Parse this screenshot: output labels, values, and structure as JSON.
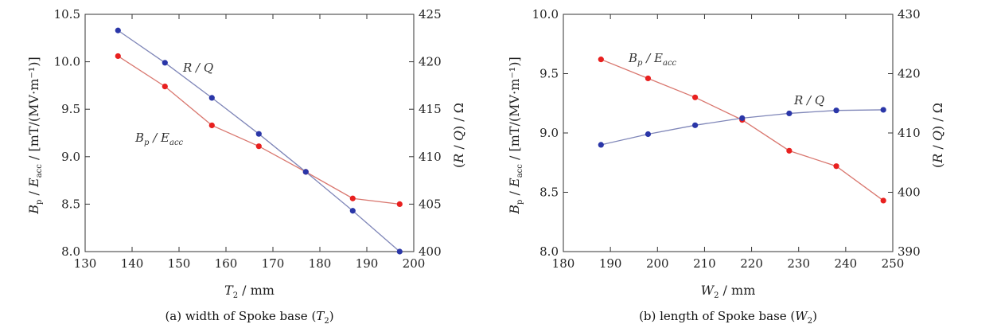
{
  "chart_data": [
    {
      "type": "line",
      "caption": "(a) width of Spoke base (T2)",
      "xlabel": "T2 / mm",
      "ylabel_left": "Bp / Eacc / [mT/(MV·m⁻¹)]",
      "ylabel_right": "(R / Q) / Ω",
      "xlim": [
        130,
        200
      ],
      "ylim_left": [
        8.0,
        10.5
      ],
      "ylim_right": [
        400,
        425
      ],
      "x_ticks": [
        "130",
        "140",
        "150",
        "160",
        "170",
        "180",
        "190",
        "200"
      ],
      "y_ticks_left": [
        "8.0",
        "8.5",
        "9.0",
        "9.5",
        "10.0",
        "10.5"
      ],
      "y_ticks_right": [
        "400",
        "405",
        "410",
        "415",
        "420",
        "425"
      ],
      "series": [
        {
          "name": "Bp / Eacc",
          "axis": "left",
          "color": "#e8201f",
          "line_color": "#d9776f",
          "x": [
            137,
            147,
            157,
            167,
            177,
            187,
            197
          ],
          "values": [
            10.06,
            9.74,
            9.33,
            9.11,
            8.84,
            8.56,
            8.5
          ]
        },
        {
          "name": "R / Q",
          "axis": "right",
          "color": "#2a36a8",
          "line_color": "#7f86b8",
          "x": [
            137,
            147,
            157,
            167,
            177,
            187,
            197
          ],
          "values": [
            423.3,
            419.9,
            416.2,
            412.4,
            408.4,
            404.3,
            400.0
          ]
        }
      ],
      "annotations": [
        {
          "text": "R / Q",
          "series": "R / Q"
        },
        {
          "text": "Bp / Eacc",
          "series": "Bp / Eacc"
        }
      ]
    },
    {
      "type": "line",
      "caption": "(b) length of Spoke base (W2)",
      "xlabel": "W2 / mm",
      "ylabel_left": "Bp / Eacc / [mT/(MV·m⁻¹)]",
      "ylabel_right": "(R / Q) / Ω",
      "xlim": [
        180,
        250
      ],
      "ylim_left": [
        8.0,
        10.0
      ],
      "ylim_right": [
        390,
        430
      ],
      "x_ticks": [
        "180",
        "190",
        "200",
        "210",
        "220",
        "230",
        "240",
        "250"
      ],
      "y_ticks_left": [
        "8.0",
        "8.5",
        "9.0",
        "9.5",
        "10.0"
      ],
      "y_ticks_right": [
        "390",
        "400",
        "410",
        "420",
        "430"
      ],
      "series": [
        {
          "name": "Bp / Eacc",
          "axis": "left",
          "color": "#e8201f",
          "line_color": "#d9776f",
          "x": [
            188,
            198,
            208,
            218,
            228,
            238,
            248
          ],
          "values": [
            9.62,
            9.46,
            9.3,
            9.11,
            8.85,
            8.72,
            8.43
          ]
        },
        {
          "name": "R / Q",
          "axis": "right",
          "color": "#2a36a8",
          "line_color": "#7f86b8",
          "x": [
            188,
            198,
            208,
            218,
            228,
            238,
            248
          ],
          "values": [
            408.0,
            409.8,
            411.3,
            412.5,
            413.3,
            413.8,
            413.9
          ]
        }
      ],
      "annotations": [
        {
          "text": "Bp / Eacc",
          "series": "Bp / Eacc"
        },
        {
          "text": "R / Q",
          "series": "R / Q"
        }
      ]
    }
  ]
}
